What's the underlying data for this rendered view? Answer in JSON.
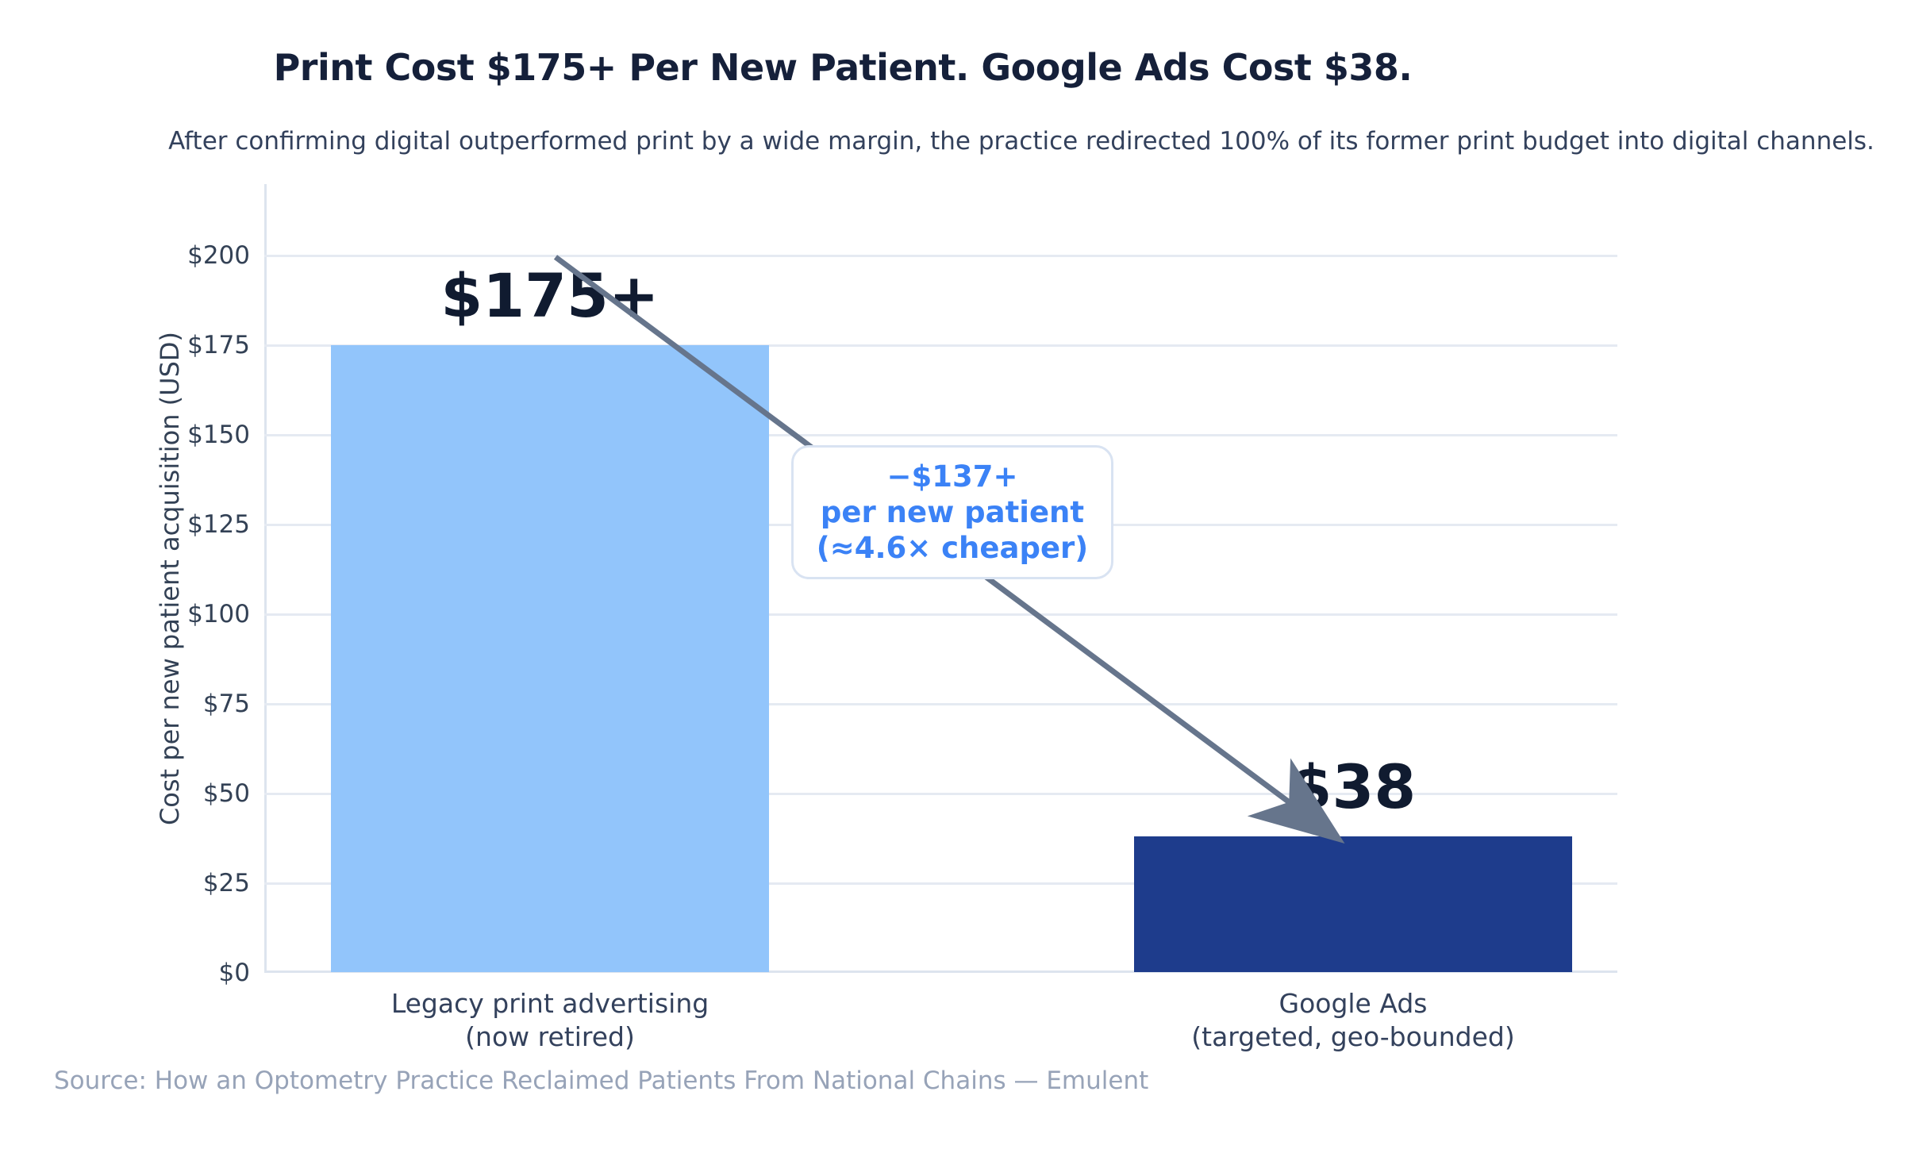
{
  "chart_data": {
    "type": "bar",
    "title": "Print Cost $175+ Per New Patient. Google Ads Cost $38.",
    "subtitle": "After confirming digital outperformed print by a wide margin, the practice redirected 100% of its former print budget into digital channels.",
    "ylabel": "Cost per new patient acquisition (USD)",
    "xlabel": "",
    "ylim": [
      0,
      200
    ],
    "grid": "horizontal",
    "legend": "none",
    "ytick_values": [
      0,
      25,
      50,
      75,
      100,
      125,
      150,
      175,
      200
    ],
    "ytick_labels": [
      "$0",
      "$25",
      "$50",
      "$75",
      "$100",
      "$125",
      "$150",
      "$175",
      "$200"
    ],
    "categories": [
      [
        "Legacy print advertising",
        "(now retired)"
      ],
      [
        "Google Ads",
        "(targeted, geo-bounded)"
      ]
    ],
    "values": [
      175,
      38
    ],
    "bar_value_labels": [
      "$175+",
      "$38"
    ],
    "bar_colors": [
      "#92c5fb",
      "#1e3c8c"
    ],
    "annotation": {
      "lines": [
        "−$137+",
        "per new patient",
        "(≈4.6× cheaper)"
      ],
      "text_color": "#3b82f6"
    },
    "arrow_color": "#66758c",
    "source": "Source: How an Optometry Practice Reclaimed Patients From National Chains — Emulent"
  }
}
